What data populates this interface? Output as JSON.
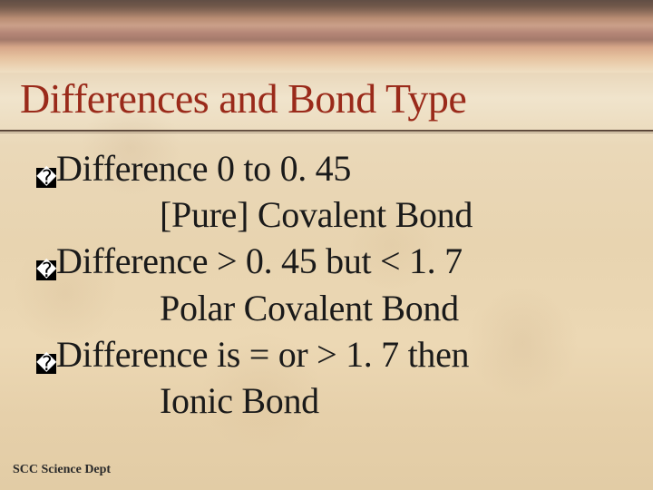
{
  "slide": {
    "title": "Differences and Bond Type",
    "title_color": "#9a2a1a",
    "title_fontsize": 46,
    "body_fontsize": 40,
    "body_color": "#1a1a1a",
    "bullet_glyph": "�",
    "lines": {
      "l1_bullet": "Difference 0 to 0. 45",
      "l2_indent": "[Pure] Covalent Bond",
      "l3_bullet": "Difference > 0. 45 but < 1. 7",
      "l4_indent": "Polar Covalent Bond",
      "l5_bullet": "Difference is = or > 1. 7 then",
      "l6_indent": "Ionic Bond"
    },
    "footer": "SCC Science Dept",
    "footer_fontsize": 14,
    "background": {
      "type": "parchment-gradient",
      "top_band_colors": [
        "#5a4a42",
        "#8a6b5a",
        "#d4a890",
        "#e8c4a0"
      ],
      "body_colors": [
        "#f0e4cc",
        "#ead8b8",
        "#e6d0aa"
      ],
      "underline_color": "#5a4538"
    }
  }
}
